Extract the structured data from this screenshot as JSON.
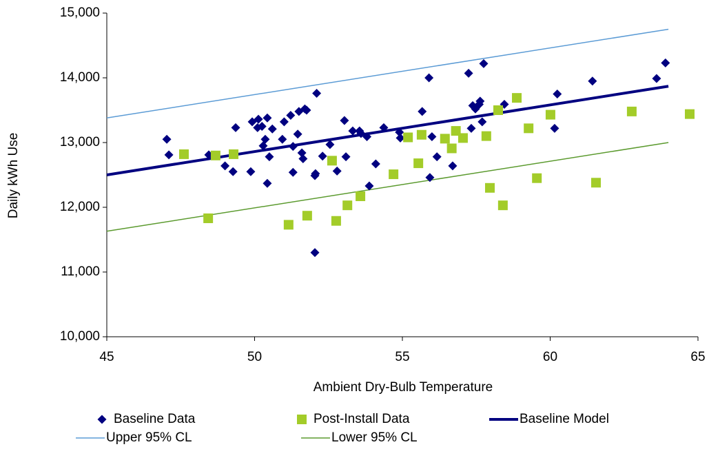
{
  "chart_data": {
    "type": "scatter",
    "x_label": "Ambient Dry-Bulb Temperature",
    "y_label": "Daily kWh Use",
    "xlim": [
      45,
      65
    ],
    "ylim": [
      10000,
      15000
    ],
    "xticks": [
      45,
      50,
      55,
      60,
      65
    ],
    "yticks": [
      {
        "value": 10000,
        "label": "10,000"
      },
      {
        "value": 11000,
        "label": "11,000"
      },
      {
        "value": 12000,
        "label": "12,000"
      },
      {
        "value": 13000,
        "label": "13,000"
      },
      {
        "value": 14000,
        "label": "14,000"
      },
      {
        "value": 15000,
        "label": "15,000"
      }
    ],
    "grid": false,
    "legend": "bottom",
    "series": [
      {
        "name": "Baseline Data",
        "color": "#000080",
        "marker": "diamond",
        "x": [
          47.03,
          47.1,
          48.45,
          49.0,
          49.27,
          49.36,
          49.87,
          49.92,
          50.13,
          50.1,
          50.25,
          50.29,
          50.36,
          50.43,
          50.43,
          50.5,
          50.6,
          50.94,
          51.0,
          51.22,
          51.3,
          51.3,
          51.46,
          51.5,
          51.6,
          51.64,
          51.7,
          51.76,
          52.04,
          52.06,
          52.1,
          52.04,
          52.3,
          52.55,
          52.79,
          53.04,
          53.09,
          53.32,
          53.55,
          53.6,
          53.8,
          53.88,
          54.1,
          54.37,
          54.9,
          54.93,
          55.67,
          55.9,
          55.93,
          56.0,
          56.17,
          56.7,
          57.24,
          57.33,
          57.38,
          57.47,
          57.6,
          57.63,
          57.7,
          57.75,
          58.45,
          60.15,
          60.24,
          61.43,
          63.6,
          63.9
        ],
        "values": [
          13050,
          12810,
          12810,
          12640,
          12550,
          13230,
          12550,
          13320,
          13360,
          13230,
          13250,
          12950,
          13050,
          13380,
          12370,
          12780,
          13210,
          13050,
          13320,
          13420,
          12540,
          12940,
          13130,
          13480,
          12840,
          12750,
          13520,
          13500,
          12490,
          12520,
          13760,
          11300,
          12790,
          12970,
          12560,
          13340,
          12780,
          13180,
          13180,
          13140,
          13090,
          12330,
          12670,
          13230,
          13160,
          13070,
          13480,
          14000,
          12460,
          13090,
          12780,
          12640,
          14070,
          13220,
          13570,
          13520,
          13590,
          13640,
          13320,
          14220,
          13590,
          13220,
          13750,
          13950,
          13990,
          14230
        ]
      },
      {
        "name": "Post-Install Data",
        "color": "#a3cc29",
        "marker": "square",
        "x": [
          47.61,
          48.68,
          49.29,
          48.43,
          51.15,
          51.78,
          52.62,
          52.76,
          53.14,
          53.58,
          54.7,
          55.19,
          55.54,
          55.65,
          56.44,
          56.67,
          56.81,
          57.05,
          57.84,
          57.96,
          58.24,
          58.4,
          58.87,
          59.27,
          59.55,
          60.01,
          61.55,
          62.76,
          64.72
        ],
        "values": [
          12820,
          12800,
          12820,
          11830,
          11730,
          11870,
          12720,
          11790,
          12030,
          12170,
          12510,
          13080,
          12680,
          13120,
          13060,
          12910,
          13180,
          13070,
          13100,
          12300,
          13500,
          12030,
          13690,
          13220,
          12450,
          13430,
          12380,
          13480,
          13440
        ]
      },
      {
        "name": "Baseline Model",
        "color": "#000080",
        "marker": "line",
        "line_width": 4,
        "x": [
          45,
          64
        ],
        "values": [
          12500,
          13870
        ]
      },
      {
        "name": "Upper 95% CL",
        "color": "#5b9bd5",
        "marker": "line",
        "line_width": 1.5,
        "x": [
          45,
          64
        ],
        "values": [
          13380,
          14750
        ]
      },
      {
        "name": "Lower 95% CL",
        "color": "#5b9a2e",
        "marker": "line",
        "line_width": 1.5,
        "x": [
          45,
          64
        ],
        "values": [
          11630,
          13000
        ]
      }
    ]
  }
}
